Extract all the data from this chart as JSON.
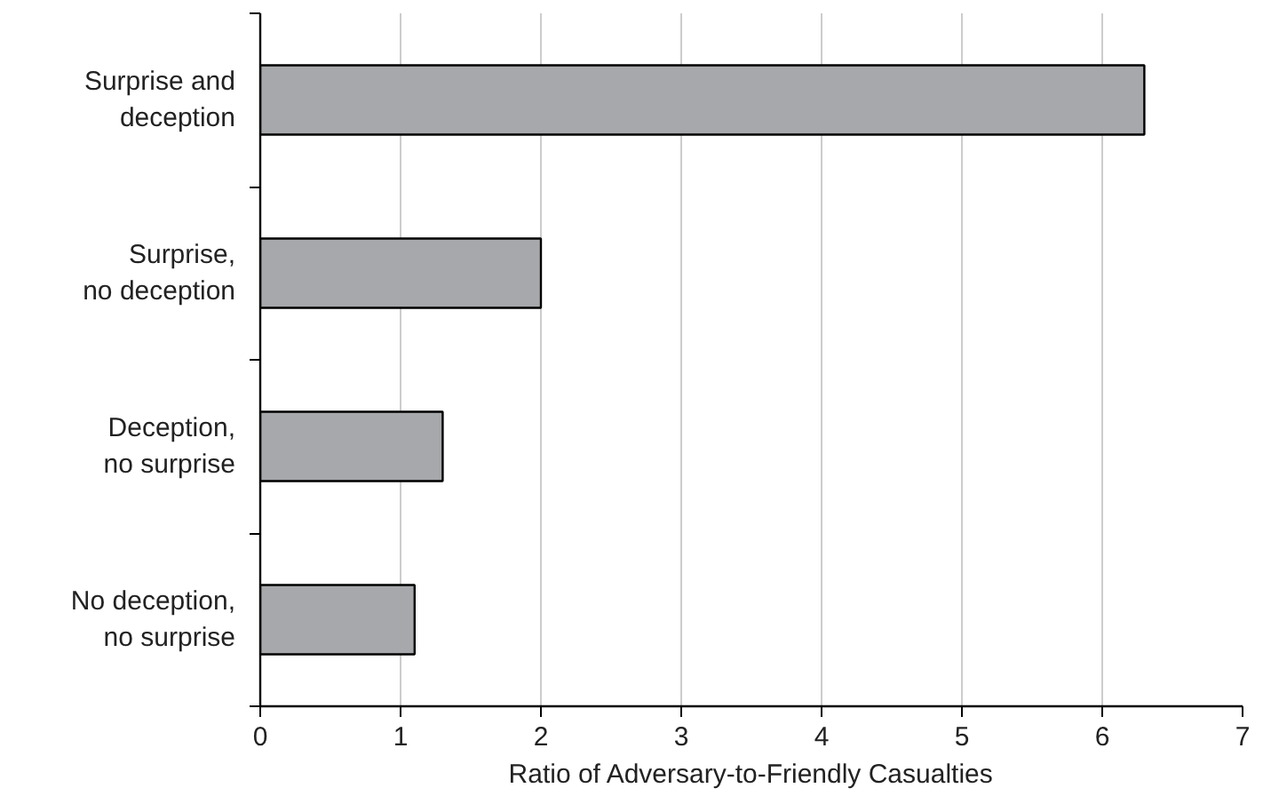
{
  "chart_data": {
    "type": "bar",
    "orientation": "horizontal",
    "xlabel": "Ratio of Adversary-to-Friendly Casualties",
    "categories": [
      "Surprise and deception",
      "Surprise, no deception",
      "Deception, no surprise",
      "No deception, no surprise"
    ],
    "values": [
      6.3,
      2.0,
      1.3,
      1.1
    ],
    "color": "#a7a8ab",
    "xlim": [
      0,
      7
    ],
    "xticks": [
      0,
      1,
      2,
      3,
      4,
      5,
      6,
      7
    ],
    "grid": "x"
  }
}
